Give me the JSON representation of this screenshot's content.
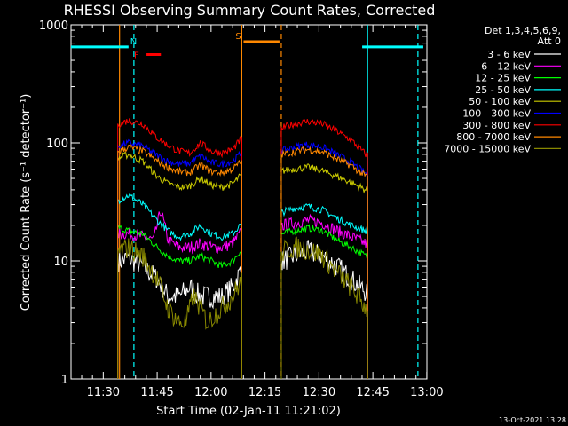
{
  "chart_data": {
    "type": "line",
    "title": "RHESSI Observing Summary Count Rates, Corrected",
    "xlabel": "Start Time (02-Jan-11 11:21:02)",
    "ylabel": "Corrected Count Rate (s⁻¹ detector⁻¹)",
    "yscale": "log",
    "ylim": [
      1,
      1000
    ],
    "xlim_min": [
      0,
      99
    ],
    "x_units": "minutes since 11:21:02",
    "x_ticks": [
      {
        "label": "11:30",
        "t": 8.97
      },
      {
        "label": "11:45",
        "t": 23.97
      },
      {
        "label": "12:00",
        "t": 38.97
      },
      {
        "label": "12:15",
        "t": 53.97
      },
      {
        "label": "12:30",
        "t": 68.97
      },
      {
        "label": "12:45",
        "t": 83.97
      },
      {
        "label": "13:00",
        "t": 98.97
      }
    ],
    "y_ticks": [
      {
        "label": "1",
        "v": 1
      },
      {
        "label": "10",
        "v": 10
      },
      {
        "label": "100",
        "v": 100
      },
      {
        "label": "1000",
        "v": 1000
      }
    ],
    "legend_header": [
      "Det 1,3,4,5,6,9,",
      "Att 0"
    ],
    "segments": [
      [
        13.0,
        47.5
      ],
      [
        58.5,
        82.5
      ]
    ],
    "series": [
      {
        "name": "3 - 6 keV",
        "color": "#ffffff",
        "points": [
          [
            13.5,
            10
          ],
          [
            16,
            10.5
          ],
          [
            20,
            9
          ],
          [
            24,
            7
          ],
          [
            27,
            5
          ],
          [
            30,
            5
          ],
          [
            33,
            6
          ],
          [
            36,
            5
          ],
          [
            39,
            5
          ],
          [
            42,
            5
          ],
          [
            45,
            6
          ],
          [
            47,
            8
          ],
          [
            59,
            10
          ],
          [
            62,
            11
          ],
          [
            66,
            12
          ],
          [
            70,
            11
          ],
          [
            74,
            9
          ],
          [
            78,
            7
          ],
          [
            82,
            5.5
          ]
        ]
      },
      {
        "name": "6 - 12 keV",
        "color": "#ff00ff",
        "points": [
          [
            13.5,
            17
          ],
          [
            16,
            17
          ],
          [
            20,
            16
          ],
          [
            23,
            15
          ],
          [
            25,
            27
          ],
          [
            27,
            15
          ],
          [
            30,
            13
          ],
          [
            33,
            13
          ],
          [
            36,
            14
          ],
          [
            39,
            13
          ],
          [
            42,
            13
          ],
          [
            45,
            14
          ],
          [
            47,
            17
          ],
          [
            59,
            20
          ],
          [
            62,
            21
          ],
          [
            66,
            22
          ],
          [
            70,
            21
          ],
          [
            74,
            18
          ],
          [
            78,
            16
          ],
          [
            82,
            14
          ]
        ]
      },
      {
        "name": "12 - 25 keV",
        "color": "#00ff00",
        "points": [
          [
            13.5,
            19
          ],
          [
            16,
            18
          ],
          [
            20,
            17
          ],
          [
            24,
            13
          ],
          [
            27,
            11
          ],
          [
            30,
            10
          ],
          [
            33,
            10
          ],
          [
            36,
            11
          ],
          [
            39,
            10
          ],
          [
            42,
            9
          ],
          [
            45,
            10
          ],
          [
            47,
            12
          ],
          [
            59,
            17
          ],
          [
            62,
            18
          ],
          [
            66,
            19
          ],
          [
            70,
            18
          ],
          [
            74,
            15
          ],
          [
            78,
            13
          ],
          [
            82,
            11
          ]
        ]
      },
      {
        "name": "25 - 50 keV",
        "color": "#00ffff",
        "points": [
          [
            13.5,
            33
          ],
          [
            16,
            36
          ],
          [
            20,
            30
          ],
          [
            24,
            22
          ],
          [
            27,
            18
          ],
          [
            30,
            16
          ],
          [
            33,
            17
          ],
          [
            36,
            20
          ],
          [
            39,
            17
          ],
          [
            42,
            16
          ],
          [
            45,
            17
          ],
          [
            47,
            20
          ],
          [
            59,
            26
          ],
          [
            62,
            28
          ],
          [
            66,
            29
          ],
          [
            70,
            27
          ],
          [
            74,
            23
          ],
          [
            78,
            20
          ],
          [
            82,
            18
          ]
        ]
      },
      {
        "name": "50 - 100 keV",
        "color": "#cccc00",
        "points": [
          [
            13.5,
            75
          ],
          [
            16,
            80
          ],
          [
            20,
            70
          ],
          [
            24,
            52
          ],
          [
            27,
            45
          ],
          [
            30,
            42
          ],
          [
            33,
            43
          ],
          [
            36,
            50
          ],
          [
            39,
            44
          ],
          [
            42,
            42
          ],
          [
            45,
            45
          ],
          [
            47,
            52
          ],
          [
            59,
            58
          ],
          [
            62,
            60
          ],
          [
            66,
            62
          ],
          [
            70,
            58
          ],
          [
            74,
            52
          ],
          [
            78,
            46
          ],
          [
            82,
            40
          ]
        ]
      },
      {
        "name": "100 - 300 keV",
        "color": "#0000ff",
        "points": [
          [
            13.5,
            95
          ],
          [
            16,
            100
          ],
          [
            20,
            94
          ],
          [
            24,
            78
          ],
          [
            27,
            70
          ],
          [
            30,
            66
          ],
          [
            33,
            67
          ],
          [
            36,
            78
          ],
          [
            39,
            68
          ],
          [
            42,
            66
          ],
          [
            45,
            70
          ],
          [
            47,
            80
          ],
          [
            59,
            87
          ],
          [
            62,
            92
          ],
          [
            66,
            97
          ],
          [
            70,
            92
          ],
          [
            74,
            80
          ],
          [
            78,
            68
          ],
          [
            82,
            55
          ]
        ]
      },
      {
        "name": "300 - 800 keV",
        "color": "#ff0000",
        "points": [
          [
            13.5,
            145
          ],
          [
            16,
            155
          ],
          [
            20,
            145
          ],
          [
            24,
            110
          ],
          [
            27,
            95
          ],
          [
            30,
            85
          ],
          [
            33,
            82
          ],
          [
            36,
            100
          ],
          [
            39,
            85
          ],
          [
            42,
            82
          ],
          [
            45,
            88
          ],
          [
            47,
            105
          ],
          [
            59,
            135
          ],
          [
            62,
            145
          ],
          [
            66,
            152
          ],
          [
            70,
            145
          ],
          [
            74,
            125
          ],
          [
            78,
            105
          ],
          [
            82,
            80
          ]
        ]
      },
      {
        "name": "800 - 7000 keV",
        "color": "#ff8800",
        "points": [
          [
            13.5,
            85
          ],
          [
            16,
            92
          ],
          [
            20,
            85
          ],
          [
            24,
            70
          ],
          [
            27,
            62
          ],
          [
            30,
            57
          ],
          [
            33,
            56
          ],
          [
            36,
            65
          ],
          [
            39,
            57
          ],
          [
            42,
            56
          ],
          [
            45,
            60
          ],
          [
            47,
            68
          ],
          [
            59,
            80
          ],
          [
            62,
            84
          ],
          [
            66,
            88
          ],
          [
            70,
            84
          ],
          [
            74,
            73
          ],
          [
            78,
            64
          ],
          [
            82,
            52
          ]
        ]
      },
      {
        "name": "7000 - 15000 keV",
        "color": "#888800",
        "points": [
          [
            13.5,
            12
          ],
          [
            16,
            13
          ],
          [
            20,
            11
          ],
          [
            24,
            7
          ],
          [
            27,
            4
          ],
          [
            30,
            3
          ],
          [
            32,
            3
          ],
          [
            34,
            5
          ],
          [
            36,
            4
          ],
          [
            38,
            3
          ],
          [
            40,
            3.5
          ],
          [
            42,
            4
          ],
          [
            45,
            5
          ],
          [
            47,
            6.5
          ],
          [
            59,
            12
          ],
          [
            62,
            13
          ],
          [
            66,
            12.5
          ],
          [
            70,
            11
          ],
          [
            74,
            8
          ],
          [
            78,
            6
          ],
          [
            82,
            4
          ]
        ]
      }
    ],
    "flags": [
      {
        "label": "N",
        "color": "#00ffff",
        "lines": [
          [
            0.0,
            16.0
          ],
          [
            81.0,
            98.0
          ]
        ],
        "value": 650
      },
      {
        "label": "F",
        "color": "#ff0000",
        "lines": [
          [
            21.0,
            25.0
          ]
        ],
        "value": 560
      },
      {
        "label": "S",
        "color": "#ff8800",
        "lines": [
          [
            48.0,
            58.0
          ]
        ],
        "value": 720
      }
    ],
    "vlines": [
      {
        "t": 13.5,
        "color": "#ff8800",
        "dash": false
      },
      {
        "t": 17.5,
        "color": "#00ffff",
        "dash": true
      },
      {
        "t": 47.5,
        "color": "#ff8800",
        "dash": false
      },
      {
        "t": 58.5,
        "color": "#ff8800",
        "dash": true
      },
      {
        "t": 82.5,
        "color": "#00ffff",
        "dash": false
      },
      {
        "t": 96.5,
        "color": "#00ffff",
        "dash": true
      }
    ],
    "footer": "13-Oct-2021 13:28"
  }
}
